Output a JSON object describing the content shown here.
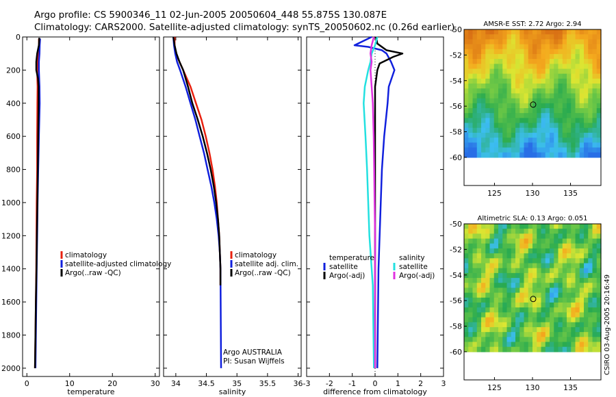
{
  "header": {
    "line1": "Argo profile: CS 5900346_11 02-Jun-2005 20050604_448 55.875S 130.087E",
    "line2": "Climatology: CARS2000. Satellite-adjusted climatology: synTS_20050602.nc (0.26d earlier)"
  },
  "colors": {
    "red": "#e8200e",
    "blue": "#1020dd",
    "black": "#000000",
    "cyan": "#22e0e0",
    "magenta": "#e030e0"
  },
  "chart_data": [
    {
      "type": "line",
      "name": "temperature",
      "xlabel": "temperature",
      "xlim": [
        -1,
        31
      ],
      "ylim": [
        2050,
        0
      ],
      "xticks": [
        0,
        10,
        20,
        30
      ],
      "yticks": [
        0,
        200,
        400,
        600,
        800,
        1000,
        1200,
        1400,
        1600,
        1800,
        2000
      ],
      "legend": [
        "climatology",
        "satellite-adjusted climatology",
        "Argo(..raw -QC)"
      ],
      "series": [
        {
          "name": "climatology",
          "color": "red",
          "depth": [
            10,
            50,
            100,
            150,
            200,
            300,
            400,
            600,
            800,
            1000,
            1200,
            1400,
            1600,
            1800,
            2000
          ],
          "values": [
            2.8,
            2.85,
            2.7,
            2.5,
            2.4,
            2.5,
            2.45,
            2.4,
            2.4,
            2.3,
            2.25,
            2.2,
            2.1,
            2.0,
            1.9
          ]
        },
        {
          "name": "satellite-adjusted climatology",
          "color": "blue",
          "depth": [
            10,
            50,
            100,
            150,
            200,
            300,
            400,
            600,
            800,
            1000,
            1200,
            1400,
            1600,
            1800,
            2000
          ],
          "values": [
            3.1,
            3.0,
            2.95,
            2.8,
            2.8,
            2.95,
            3.0,
            2.8,
            2.65,
            2.5,
            2.4,
            2.3,
            2.2,
            2.1,
            2.0
          ]
        },
        {
          "name": "Argo(..raw -QC)",
          "color": "black",
          "depth": [
            5,
            50,
            100,
            150,
            200,
            250,
            300,
            400,
            600,
            800,
            1000,
            1200,
            1400,
            1600,
            1800,
            2000
          ],
          "values": [
            2.9,
            2.8,
            2.4,
            2.2,
            2.2,
            2.6,
            2.75,
            2.75,
            2.65,
            2.55,
            2.45,
            2.35,
            2.25,
            2.1,
            2.0,
            1.9
          ]
        }
      ]
    },
    {
      "type": "line",
      "name": "salinity",
      "xlabel": "salinity",
      "xlim": [
        33.8,
        36.05
      ],
      "ylim": [
        2050,
        0
      ],
      "xticks": [
        34,
        34.5,
        35,
        35.5,
        36
      ],
      "legend": [
        "climatology",
        "satellite adj. clim.",
        "Argo(..raw -QC)"
      ],
      "annotation": [
        "Argo AUSTRALIA",
        "PI: Susan Wijffels"
      ],
      "series": [
        {
          "name": "climatology",
          "color": "red",
          "depth": [
            0,
            50,
            100,
            150,
            200,
            300,
            400,
            500,
            600,
            700,
            800,
            900,
            1000,
            1100,
            1200,
            1300,
            1400,
            1500
          ],
          "values": [
            33.98,
            33.98,
            34.0,
            34.06,
            34.12,
            34.24,
            34.33,
            34.42,
            34.49,
            34.55,
            34.6,
            34.64,
            34.67,
            34.69,
            34.71,
            34.72,
            34.73,
            34.73
          ]
        },
        {
          "name": "satellite adj. clim.",
          "color": "blue",
          "depth": [
            0,
            50,
            100,
            150,
            200,
            300,
            400,
            500,
            600,
            700,
            800,
            900,
            1000,
            1100,
            1200,
            1300,
            1400,
            2000
          ],
          "values": [
            33.96,
            33.97,
            33.99,
            34.02,
            34.07,
            34.16,
            34.24,
            34.32,
            34.39,
            34.46,
            34.52,
            34.58,
            34.63,
            34.67,
            34.7,
            34.72,
            34.73,
            34.74
          ]
        },
        {
          "name": "Argo(..raw -QC)",
          "color": "black",
          "depth": [
            0,
            50,
            100,
            150,
            200,
            300,
            400,
            500,
            600,
            700,
            800,
            900,
            1000,
            1100,
            1200,
            1300,
            1400,
            1500
          ],
          "values": [
            33.96,
            33.98,
            34.01,
            34.06,
            34.12,
            34.2,
            34.27,
            34.36,
            34.44,
            34.51,
            34.57,
            34.62,
            34.66,
            34.69,
            34.71,
            34.72,
            34.73,
            34.73
          ]
        }
      ]
    },
    {
      "type": "line",
      "name": "difference",
      "xlabel": "difference from climatology",
      "xlim": [
        -3,
        3
      ],
      "ylim": [
        2050,
        0
      ],
      "xticks": [
        -3,
        -2,
        -1,
        0,
        1,
        2,
        3
      ],
      "legend_left": {
        "title": "temperature",
        "items": [
          "satellite",
          "Argo(-adj)"
        ]
      },
      "legend_right": {
        "title": "salinity",
        "items": [
          "satellite",
          "Argo(-adj)"
        ]
      },
      "series": [
        {
          "name": "temperature satellite",
          "color": "blue",
          "depth": [
            0,
            30,
            50,
            60,
            80,
            100,
            150,
            200,
            300,
            400,
            600,
            800,
            1000,
            1400,
            2000
          ],
          "values": [
            -0.15,
            -0.6,
            -0.9,
            -0.3,
            0.3,
            0.5,
            0.7,
            0.85,
            0.6,
            0.55,
            0.4,
            0.3,
            0.25,
            0.15,
            0.1
          ]
        },
        {
          "name": "temperature Argo(-adj)",
          "color": "black",
          "depth": [
            0,
            40,
            80,
            100,
            120,
            160,
            200,
            250,
            300,
            400,
            600,
            800,
            1000,
            1400,
            2000
          ],
          "values": [
            0.05,
            0.1,
            0.5,
            1.2,
            0.8,
            0.2,
            0.1,
            0.05,
            0.0,
            0.0,
            0.0,
            0.0,
            0.0,
            0.0,
            0.0
          ]
        },
        {
          "name": "salinity satellite",
          "color": "cyan",
          "depth": [
            0,
            50,
            100,
            150,
            200,
            300,
            400,
            600,
            800,
            1000,
            1200,
            1500,
            2000
          ],
          "values": [
            0.1,
            0.0,
            -0.15,
            -0.2,
            -0.3,
            -0.45,
            -0.5,
            -0.42,
            -0.35,
            -0.3,
            -0.25,
            -0.1,
            -0.05
          ]
        },
        {
          "name": "salinity Argo(-adj)",
          "color": "magenta",
          "depth": [
            0,
            50,
            100,
            150,
            200,
            300,
            400,
            600,
            800,
            1000,
            1200,
            1500,
            2000
          ],
          "values": [
            -0.05,
            -0.15,
            -0.2,
            -0.15,
            -0.2,
            -0.15,
            -0.1,
            -0.06,
            -0.04,
            -0.02,
            0.0,
            0.0,
            0.0
          ]
        }
      ]
    },
    {
      "type": "heatmap",
      "name": "sst-map",
      "title": "AMSR-E SST: 2.72 Argo: 2.94",
      "xticks": [
        125,
        130,
        135
      ],
      "yticks": [
        -50,
        -52,
        -54,
        -56,
        -58,
        -60
      ],
      "xlim": [
        121,
        139
      ],
      "ylim": [
        -62.2,
        -50
      ],
      "argo_point": [
        130.087,
        -55.875
      ]
    },
    {
      "type": "heatmap",
      "name": "sla-map",
      "title": "Altimetric SLA: 0.13 Argo: 0.051",
      "xticks": [
        125,
        130,
        135
      ],
      "yticks": [
        -50,
        -52,
        -54,
        -56,
        -58,
        -60
      ],
      "xlim": [
        121,
        139
      ],
      "ylim": [
        -62.2,
        -50
      ],
      "argo_point": [
        130.087,
        -55.875
      ]
    }
  ],
  "footer": {
    "credit": "CSIRO 03-Aug-2005 20:16:49"
  }
}
